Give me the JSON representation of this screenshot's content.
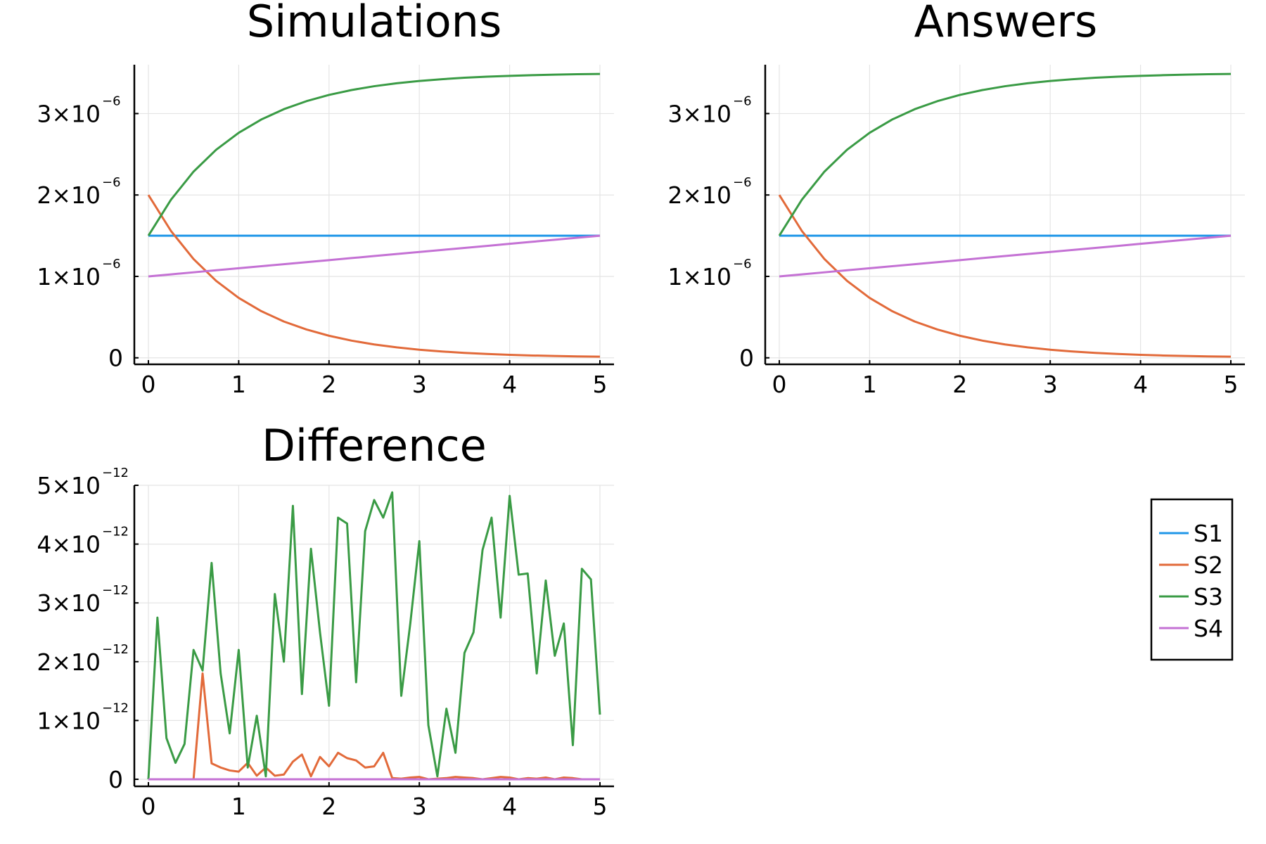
{
  "colors": {
    "S1": "#1f96e8",
    "S2": "#e26a3a",
    "S3": "#3a9b45",
    "S4": "#c471d4"
  },
  "legend": {
    "placement": "right",
    "items": [
      "S1",
      "S2",
      "S3",
      "S4"
    ]
  },
  "chart_data": [
    {
      "type": "line",
      "title": "Simulations",
      "xlabel": "",
      "ylabel": "",
      "xlim": [
        0,
        5
      ],
      "ylim": [
        -8e-08,
        3.6e-06
      ],
      "grid": true,
      "xticks": [
        0,
        1,
        2,
        3,
        4,
        5
      ],
      "xtick_labels": [
        "0",
        "1",
        "2",
        "3",
        "4",
        "5"
      ],
      "yticks": [
        0,
        1e-06,
        2e-06,
        3e-06
      ],
      "ytick_labels": [
        {
          "base": "0",
          "exp": ""
        },
        {
          "base": "1×10",
          "exp": "−6"
        },
        {
          "base": "2×10",
          "exp": "−6"
        },
        {
          "base": "3×10",
          "exp": "−6"
        }
      ],
      "x": [
        0,
        0.25,
        0.5,
        0.75,
        1,
        1.25,
        1.5,
        1.75,
        2,
        2.25,
        2.5,
        2.75,
        3,
        3.25,
        3.5,
        3.75,
        4,
        4.25,
        4.5,
        4.75,
        5
      ],
      "series": [
        {
          "name": "S1",
          "values": [
            1.5e-06,
            1.5e-06,
            1.5e-06,
            1.5e-06,
            1.5e-06,
            1.5e-06,
            1.5e-06,
            1.5e-06,
            1.5e-06,
            1.5e-06,
            1.5e-06,
            1.5e-06,
            1.5e-06,
            1.5e-06,
            1.5e-06,
            1.5e-06,
            1.5e-06,
            1.5e-06,
            1.5e-06,
            1.5e-06,
            1.5e-06
          ]
        },
        {
          "name": "S2",
          "values": [
            2e-06,
            1.558e-06,
            1.213e-06,
            9.45e-07,
            7.36e-07,
            5.73e-07,
            4.46e-07,
            3.48e-07,
            2.71e-07,
            2.11e-07,
            1.64e-07,
            1.28e-07,
            9.96e-08,
            7.76e-08,
            6.04e-08,
            4.71e-08,
            3.66e-08,
            2.85e-08,
            2.22e-08,
            1.73e-08,
            1.35e-08
          ]
        },
        {
          "name": "S3",
          "values": [
            1.5e-06,
            1.942e-06,
            2.287e-06,
            2.555e-06,
            2.764e-06,
            2.927e-06,
            3.054e-06,
            3.152e-06,
            3.229e-06,
            3.289e-06,
            3.336e-06,
            3.372e-06,
            3.4e-06,
            3.422e-06,
            3.44e-06,
            3.453e-06,
            3.463e-06,
            3.471e-06,
            3.478e-06,
            3.483e-06,
            3.487e-06
          ]
        },
        {
          "name": "S4",
          "values": [
            1e-06,
            1.025e-06,
            1.05e-06,
            1.075e-06,
            1.1e-06,
            1.125e-06,
            1.15e-06,
            1.175e-06,
            1.2e-06,
            1.225e-06,
            1.25e-06,
            1.275e-06,
            1.3e-06,
            1.325e-06,
            1.35e-06,
            1.375e-06,
            1.4e-06,
            1.425e-06,
            1.45e-06,
            1.475e-06,
            1.5e-06
          ]
        }
      ]
    },
    {
      "type": "line",
      "title": "Answers",
      "xlabel": "",
      "ylabel": "",
      "xlim": [
        0,
        5
      ],
      "ylim": [
        -8e-08,
        3.6e-06
      ],
      "grid": true,
      "xticks": [
        0,
        1,
        2,
        3,
        4,
        5
      ],
      "xtick_labels": [
        "0",
        "1",
        "2",
        "3",
        "4",
        "5"
      ],
      "yticks": [
        0,
        1e-06,
        2e-06,
        3e-06
      ],
      "ytick_labels": [
        {
          "base": "0",
          "exp": ""
        },
        {
          "base": "1×10",
          "exp": "−6"
        },
        {
          "base": "2×10",
          "exp": "−6"
        },
        {
          "base": "3×10",
          "exp": "−6"
        }
      ],
      "x": [
        0,
        0.25,
        0.5,
        0.75,
        1,
        1.25,
        1.5,
        1.75,
        2,
        2.25,
        2.5,
        2.75,
        3,
        3.25,
        3.5,
        3.75,
        4,
        4.25,
        4.5,
        4.75,
        5
      ],
      "series": [
        {
          "name": "S1",
          "values": [
            1.5e-06,
            1.5e-06,
            1.5e-06,
            1.5e-06,
            1.5e-06,
            1.5e-06,
            1.5e-06,
            1.5e-06,
            1.5e-06,
            1.5e-06,
            1.5e-06,
            1.5e-06,
            1.5e-06,
            1.5e-06,
            1.5e-06,
            1.5e-06,
            1.5e-06,
            1.5e-06,
            1.5e-06,
            1.5e-06,
            1.5e-06
          ]
        },
        {
          "name": "S2",
          "values": [
            2e-06,
            1.558e-06,
            1.213e-06,
            9.45e-07,
            7.36e-07,
            5.73e-07,
            4.46e-07,
            3.48e-07,
            2.71e-07,
            2.11e-07,
            1.64e-07,
            1.28e-07,
            9.96e-08,
            7.76e-08,
            6.04e-08,
            4.71e-08,
            3.66e-08,
            2.85e-08,
            2.22e-08,
            1.73e-08,
            1.35e-08
          ]
        },
        {
          "name": "S3",
          "values": [
            1.5e-06,
            1.942e-06,
            2.287e-06,
            2.555e-06,
            2.764e-06,
            2.927e-06,
            3.054e-06,
            3.152e-06,
            3.229e-06,
            3.289e-06,
            3.336e-06,
            3.372e-06,
            3.4e-06,
            3.422e-06,
            3.44e-06,
            3.453e-06,
            3.463e-06,
            3.471e-06,
            3.478e-06,
            3.483e-06,
            3.487e-06
          ]
        },
        {
          "name": "S4",
          "values": [
            1e-06,
            1.025e-06,
            1.05e-06,
            1.075e-06,
            1.1e-06,
            1.125e-06,
            1.15e-06,
            1.175e-06,
            1.2e-06,
            1.225e-06,
            1.25e-06,
            1.275e-06,
            1.3e-06,
            1.325e-06,
            1.35e-06,
            1.375e-06,
            1.4e-06,
            1.425e-06,
            1.45e-06,
            1.475e-06,
            1.5e-06
          ]
        }
      ]
    },
    {
      "type": "line",
      "title": "Difference",
      "xlabel": "",
      "ylabel": "",
      "xlim": [
        0,
        5
      ],
      "ylim": [
        -1.2e-13,
        5e-12
      ],
      "grid": true,
      "xticks": [
        0,
        1,
        2,
        3,
        4,
        5
      ],
      "xtick_labels": [
        "0",
        "1",
        "2",
        "3",
        "4",
        "5"
      ],
      "yticks": [
        0,
        1e-12,
        2e-12,
        3e-12,
        4e-12,
        5e-12
      ],
      "ytick_labels": [
        {
          "base": "0",
          "exp": ""
        },
        {
          "base": "1×10",
          "exp": "−12"
        },
        {
          "base": "2×10",
          "exp": "−12"
        },
        {
          "base": "3×10",
          "exp": "−12"
        },
        {
          "base": "4×10",
          "exp": "−12"
        },
        {
          "base": "5×10",
          "exp": "−12"
        }
      ],
      "x": [
        0,
        0.1,
        0.2,
        0.3,
        0.4,
        0.5,
        0.6,
        0.7,
        0.8,
        0.9,
        1.0,
        1.1,
        1.2,
        1.3,
        1.4,
        1.5,
        1.6,
        1.7,
        1.8,
        1.9,
        2.0,
        2.1,
        2.2,
        2.3,
        2.4,
        2.5,
        2.6,
        2.7,
        2.8,
        2.9,
        3.0,
        3.1,
        3.2,
        3.3,
        3.4,
        3.5,
        3.6,
        3.7,
        3.8,
        3.9,
        4.0,
        4.1,
        4.2,
        4.3,
        4.4,
        4.5,
        4.6,
        4.7,
        4.8,
        4.9,
        5.0
      ],
      "series": [
        {
          "name": "S1",
          "values": [
            0,
            0,
            0,
            0,
            0,
            0,
            0,
            0,
            0,
            0,
            0,
            0,
            0,
            0,
            0,
            0,
            0,
            0,
            0,
            0,
            0,
            0,
            0,
            0,
            0,
            0,
            0,
            0,
            0,
            0,
            0,
            0,
            0,
            0,
            0,
            0,
            0,
            0,
            0,
            0,
            0,
            0,
            0,
            0,
            0,
            0,
            0,
            0,
            0,
            0,
            0
          ]
        },
        {
          "name": "S2",
          "values": [
            0,
            0,
            0,
            0,
            0,
            0,
            1.8e-12,
            2.7e-13,
            2e-13,
            1.5e-13,
            1.3e-13,
            2.8e-13,
            6e-14,
            2e-13,
            6e-14,
            8e-14,
            3e-13,
            4.2e-13,
            5e-14,
            3.8e-13,
            2.2e-13,
            4.5e-13,
            3.6e-13,
            3.2e-13,
            2e-13,
            2.2e-13,
            4.5e-13,
            2e-14,
            1e-14,
            3e-14,
            4e-14,
            0.0,
            1e-14,
            2e-14,
            4e-14,
            3e-14,
            2e-14,
            0.0,
            2e-14,
            4e-14,
            3e-14,
            0.0,
            2e-14,
            1e-14,
            3e-14,
            0.0,
            3e-14,
            2e-14,
            0.0,
            0.0,
            0.0
          ]
        },
        {
          "name": "S3",
          "values": [
            0,
            2.75e-12,
            7e-13,
            2.8e-13,
            6e-13,
            2.2e-12,
            1.85e-12,
            3.68e-12,
            1.8e-12,
            7.8e-13,
            2.2e-12,
            2e-13,
            1.08e-12,
            5e-14,
            3.15e-12,
            2e-12,
            4.65e-12,
            1.45e-12,
            3.92e-12,
            2.5e-12,
            1.25e-12,
            4.45e-12,
            4.35e-12,
            1.65e-12,
            4.22e-12,
            4.75e-12,
            4.45e-12,
            4.88e-12,
            1.42e-12,
            2.65e-12,
            4.05e-12,
            9.2e-13,
            5e-14,
            1.2e-12,
            4.5e-13,
            2.15e-12,
            2.5e-12,
            3.9e-12,
            4.45e-12,
            2.75e-12,
            4.82e-12,
            3.48e-12,
            3.5e-12,
            1.8e-12,
            3.38e-12,
            2.1e-12,
            2.65e-12,
            5.8e-13,
            3.58e-12,
            3.4e-12,
            1.1e-12
          ]
        },
        {
          "name": "S4",
          "values": [
            0,
            0,
            0,
            0,
            0,
            0,
            0,
            0,
            0,
            0,
            0,
            0,
            0,
            0,
            0,
            0,
            0,
            0,
            0,
            0,
            0,
            0,
            0,
            0,
            0,
            0,
            0,
            0,
            0,
            0,
            0,
            0,
            0,
            0,
            0,
            0,
            0,
            0,
            0,
            0,
            0,
            0,
            0,
            0,
            0,
            0,
            0,
            0,
            0,
            0,
            0
          ]
        }
      ]
    }
  ]
}
